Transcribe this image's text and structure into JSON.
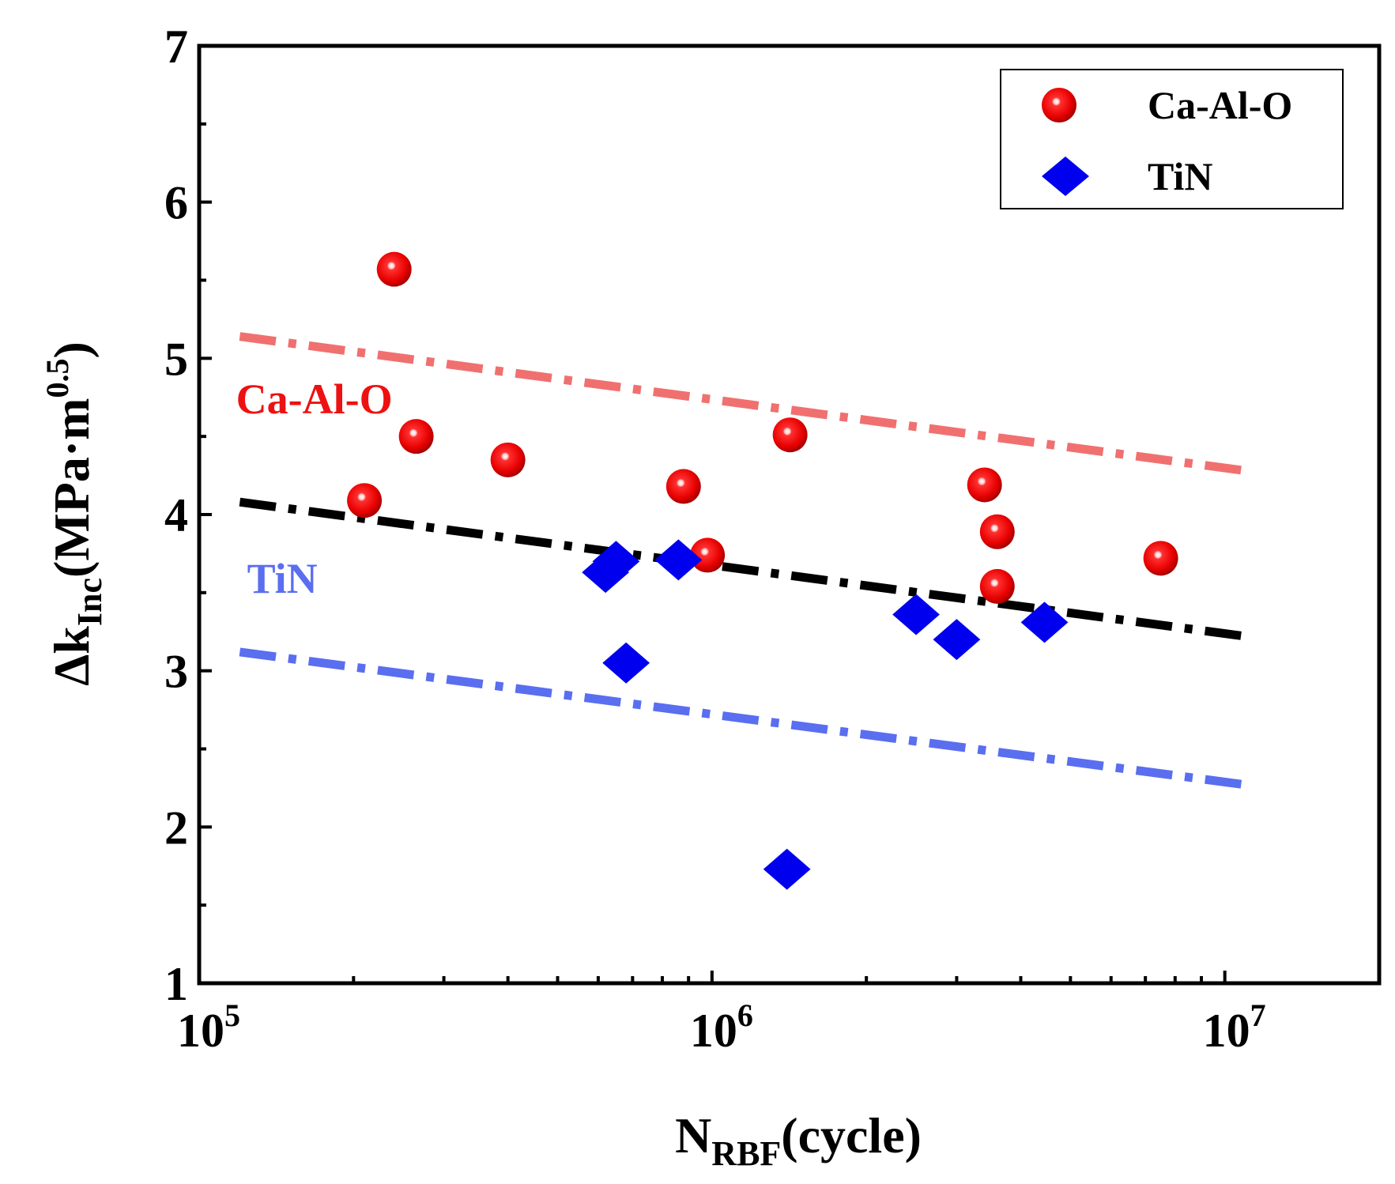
{
  "chart_data": {
    "type": "scatter",
    "xscale": "log",
    "xlim": [
      100000,
      20000000
    ],
    "ylim": [
      1,
      7
    ],
    "xlabel": {
      "main": "N",
      "sub": "RBF",
      "rest": "(cycle)"
    },
    "ylabel": {
      "main": "Δk",
      "sub": "Inc",
      "rest": "(MPa·m",
      "sup": "0.5",
      "end": ")"
    },
    "x_ticks": [
      {
        "value": 100000,
        "base": "10",
        "exp": "5"
      },
      {
        "value": 1000000,
        "base": "10",
        "exp": "6"
      },
      {
        "value": 10000000,
        "base": "10",
        "exp": "7"
      }
    ],
    "y_ticks": [
      "1",
      "2",
      "3",
      "4",
      "5",
      "6",
      "7"
    ],
    "series": [
      {
        "name": "Ca-Al-O",
        "marker": "sphere",
        "color": "#ee1111",
        "points": [
          {
            "x": 210000,
            "y": 4.09
          },
          {
            "x": 240000,
            "y": 5.57
          },
          {
            "x": 265000,
            "y": 4.5
          },
          {
            "x": 400000,
            "y": 4.35
          },
          {
            "x": 880000,
            "y": 4.18
          },
          {
            "x": 980000,
            "y": 3.74
          },
          {
            "x": 1420000,
            "y": 4.51
          },
          {
            "x": 3400000,
            "y": 4.19
          },
          {
            "x": 3600000,
            "y": 3.89
          },
          {
            "x": 3600000,
            "y": 3.54
          },
          {
            "x": 7500000,
            "y": 3.72
          }
        ]
      },
      {
        "name": "TiN",
        "marker": "diamond",
        "color": "#0000ee",
        "points": [
          {
            "x": 620000,
            "y": 3.63
          },
          {
            "x": 650000,
            "y": 3.7
          },
          {
            "x": 680000,
            "y": 3.05
          },
          {
            "x": 860000,
            "y": 3.71
          },
          {
            "x": 1400000,
            "y": 1.73
          },
          {
            "x": 2500000,
            "y": 3.36
          },
          {
            "x": 3000000,
            "y": 3.2
          },
          {
            "x": 4450000,
            "y": 3.31
          }
        ]
      }
    ],
    "lines": [
      {
        "name": "upper-bound",
        "color": "#f07070",
        "x": [
          120000,
          11000000
        ],
        "y": [
          5.14,
          4.28
        ]
      },
      {
        "name": "mean-fit",
        "color": "#000000",
        "x": [
          120000,
          11000000
        ],
        "y": [
          4.08,
          3.22
        ]
      },
      {
        "name": "lower-bound",
        "color": "#5a6ef0",
        "x": [
          120000,
          11000000
        ],
        "y": [
          3.12,
          2.27
        ]
      }
    ],
    "annotations": [
      {
        "text": "Ca-Al-O",
        "color": "#ee1111",
        "x": 118000,
        "y": 4.75
      },
      {
        "text": "TiN",
        "color": "#5a6ef0",
        "x": 124000,
        "y": 3.6
      }
    ],
    "legend": {
      "placement": "top-right",
      "entries": [
        "Ca-Al-O",
        "TiN"
      ]
    }
  }
}
